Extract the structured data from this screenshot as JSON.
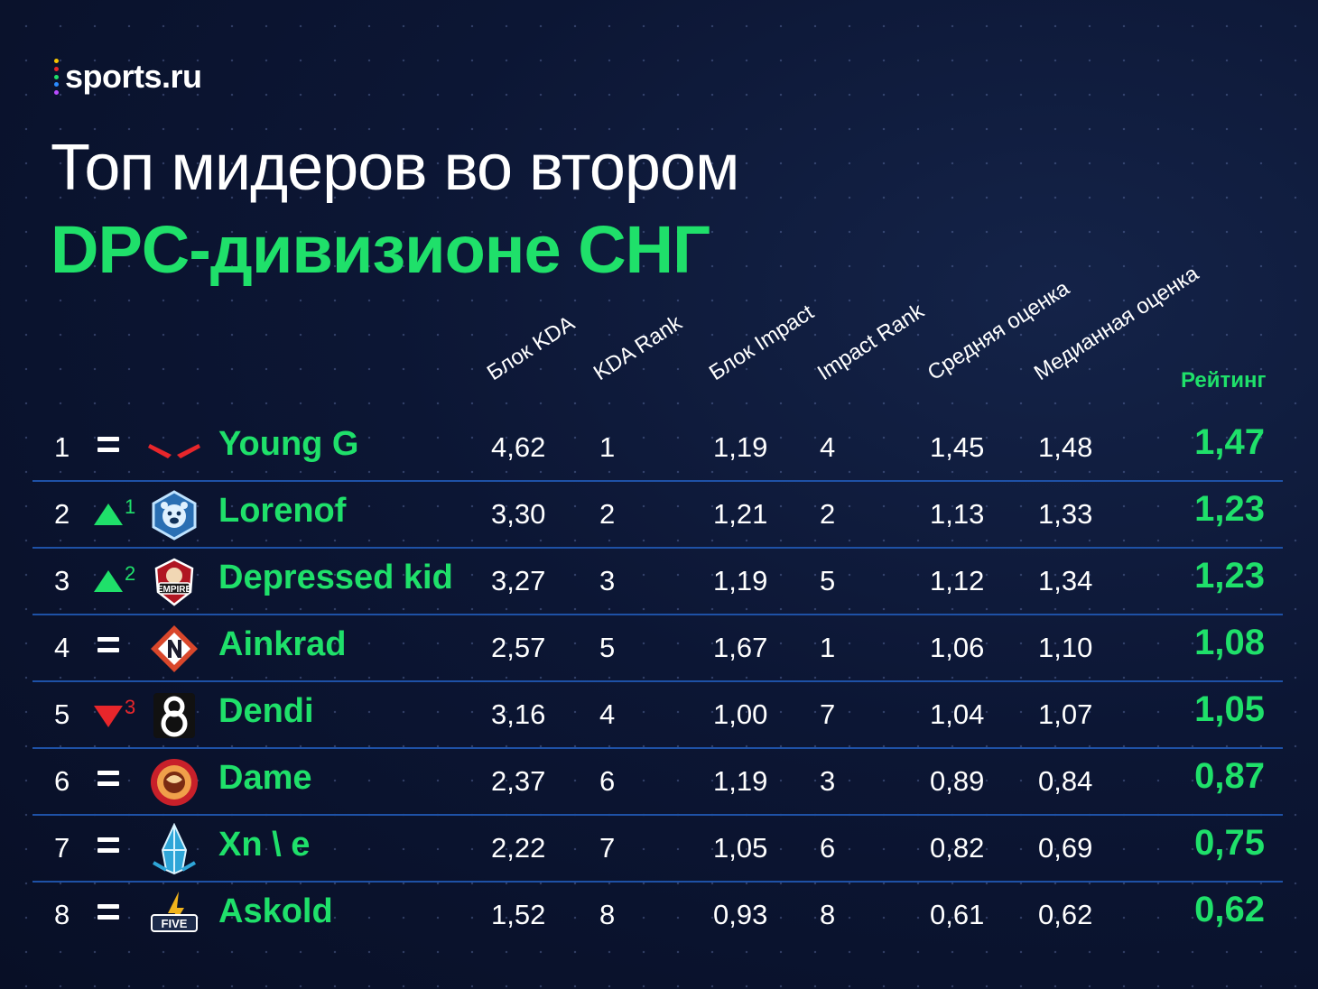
{
  "brand": {
    "name": "sports.ru",
    "dot_colors": [
      "#f5c400",
      "#e8262b",
      "#1fe06a",
      "#2b8cff",
      "#b84cff"
    ]
  },
  "header": {
    "title": "Топ мидеров во втором",
    "subtitle": "DPC-дивизионе СНГ"
  },
  "colors": {
    "accent": "#1fe06a",
    "down": "#e8262b",
    "divider": "#1e51a6",
    "background": "#0c1634"
  },
  "columns": {
    "kda_block": "Блок KDA",
    "kda_rank": "KDA Rank",
    "impact_block": "Блок Impact",
    "impact_rank": "Impact Rank",
    "avg_score": "Средняя оценка",
    "median_score": "Медианная оценка",
    "rating": "Рейтинг"
  },
  "rows": [
    {
      "rank": "1",
      "change": "same",
      "change_value": "",
      "team_icon": "red-chevron-logo-icon",
      "player": "Young G",
      "kda_block": "4,62",
      "kda_rank": "1",
      "impact_block": "1,19",
      "impact_rank": "4",
      "avg_score": "1,45",
      "median_score": "1,48",
      "rating": "1,47"
    },
    {
      "rank": "2",
      "change": "up",
      "change_value": "1",
      "team_icon": "bear-logo-icon",
      "player": "Lorenof",
      "kda_block": "3,30",
      "kda_rank": "2",
      "impact_block": "1,21",
      "impact_rank": "2",
      "avg_score": "1,13",
      "median_score": "1,33",
      "rating": "1,23"
    },
    {
      "rank": "3",
      "change": "up",
      "change_value": "2",
      "team_icon": "empire-logo-icon",
      "player": "Depressed kid",
      "kda_block": "3,27",
      "kda_rank": "3",
      "impact_block": "1,19",
      "impact_rank": "5",
      "avg_score": "1,12",
      "median_score": "1,34",
      "rating": "1,23"
    },
    {
      "rank": "4",
      "change": "same",
      "change_value": "",
      "team_icon": "nemiga-logo-icon",
      "player": "Ainkrad",
      "kda_block": "2,57",
      "kda_rank": "5",
      "impact_block": "1,67",
      "impact_rank": "1",
      "avg_score": "1,06",
      "median_score": "1,10",
      "rating": "1,08"
    },
    {
      "rank": "5",
      "change": "down",
      "change_value": "3",
      "team_icon": "b8-logo-icon",
      "player": "Dendi",
      "kda_block": "3,16",
      "kda_rank": "4",
      "impact_block": "1,00",
      "impact_rank": "7",
      "avg_score": "1,04",
      "median_score": "1,07",
      "rating": "1,05"
    },
    {
      "rank": "6",
      "change": "same",
      "change_value": "",
      "team_icon": "round-emblem-logo-icon",
      "player": "Dame",
      "kda_block": "2,37",
      "kda_rank": "6",
      "impact_block": "1,19",
      "impact_rank": "3",
      "avg_score": "0,89",
      "median_score": "0,84",
      "rating": "0,87"
    },
    {
      "rank": "7",
      "change": "same",
      "change_value": "",
      "team_icon": "crystal-logo-icon",
      "player": "Xn \\ e",
      "kda_block": "2,22",
      "kda_rank": "7",
      "impact_block": "1,05",
      "impact_rank": "6",
      "avg_score": "0,82",
      "median_score": "0,69",
      "rating": "0,75"
    },
    {
      "rank": "8",
      "change": "same",
      "change_value": "",
      "team_icon": "five-logo-icon",
      "player": "Askold",
      "kda_block": "1,52",
      "kda_rank": "8",
      "impact_block": "0,93",
      "impact_rank": "8",
      "avg_score": "0,61",
      "median_score": "0,62",
      "rating": "0,62"
    }
  ]
}
